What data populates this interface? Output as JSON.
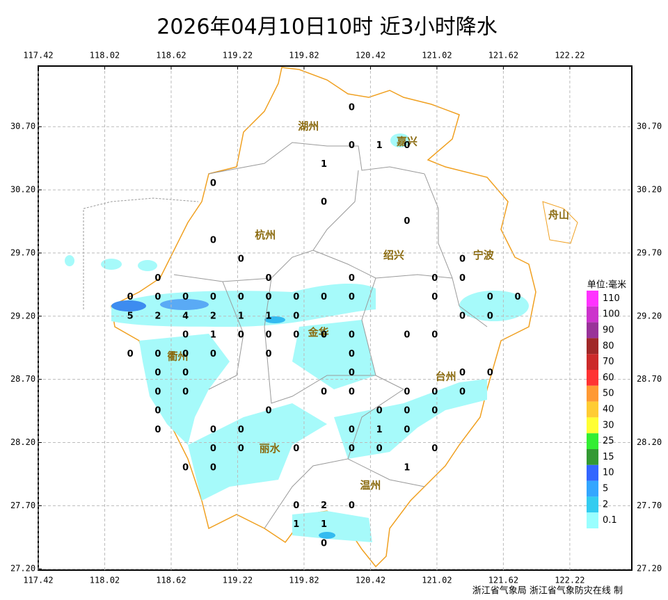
{
  "title": "2026年04月10日10时  近3小时降水",
  "map": {
    "xlim": [
      117.42,
      122.78
    ],
    "ylim": [
      27.19,
      31.18
    ],
    "xticks": [
      117.42,
      118.02,
      118.62,
      119.22,
      119.82,
      120.42,
      121.02,
      121.62,
      122.22
    ],
    "yticks": [
      {
        "value": 30.7,
        "label": "30.70"
      },
      {
        "value": 30.2,
        "label": "30.20"
      },
      {
        "value": 29.7,
        "label": "29.70"
      },
      {
        "value": 29.2,
        "label": "29.20"
      },
      {
        "value": 28.7,
        "label": "28.70"
      },
      {
        "value": 28.2,
        "label": "28.20"
      },
      {
        "value": 27.7,
        "label": "27.70"
      },
      {
        "value": 27.2,
        "label": "27.20"
      }
    ],
    "cities": [
      {
        "name": "湖州",
        "lon": 119.86,
        "lat": 30.7
      },
      {
        "name": "嘉兴",
        "lon": 120.75,
        "lat": 30.58
      },
      {
        "name": "杭州",
        "lon": 119.47,
        "lat": 29.84
      },
      {
        "name": "绍兴",
        "lon": 120.63,
        "lat": 29.68
      },
      {
        "name": "宁波",
        "lon": 121.44,
        "lat": 29.68
      },
      {
        "name": "舟山",
        "lon": 122.12,
        "lat": 30.0
      },
      {
        "name": "衢州",
        "lon": 118.68,
        "lat": 28.88
      },
      {
        "name": "金华",
        "lon": 119.95,
        "lat": 29.07
      },
      {
        "name": "台州",
        "lon": 121.1,
        "lat": 28.72
      },
      {
        "name": "丽水",
        "lon": 119.51,
        "lat": 28.15
      },
      {
        "name": "温州",
        "lon": 120.42,
        "lat": 27.86
      }
    ],
    "stations": [
      {
        "lon": 120.25,
        "lat": 30.85,
        "value": 0
      },
      {
        "lon": 120.25,
        "lat": 30.55,
        "value": 0
      },
      {
        "lon": 120.5,
        "lat": 30.55,
        "value": 1
      },
      {
        "lon": 120.75,
        "lat": 30.55,
        "value": 0
      },
      {
        "lon": 120.0,
        "lat": 30.4,
        "value": 1
      },
      {
        "lon": 119.0,
        "lat": 30.25,
        "value": 0
      },
      {
        "lon": 120.0,
        "lat": 30.1,
        "value": 0
      },
      {
        "lon": 120.75,
        "lat": 29.95,
        "value": 0
      },
      {
        "lon": 119.0,
        "lat": 29.8,
        "value": 0
      },
      {
        "lon": 119.25,
        "lat": 29.65,
        "value": 0
      },
      {
        "lon": 121.25,
        "lat": 29.65,
        "value": 0
      },
      {
        "lon": 118.5,
        "lat": 29.5,
        "value": 0
      },
      {
        "lon": 119.5,
        "lat": 29.5,
        "value": 0
      },
      {
        "lon": 120.25,
        "lat": 29.5,
        "value": 0
      },
      {
        "lon": 121.0,
        "lat": 29.5,
        "value": 0
      },
      {
        "lon": 121.25,
        "lat": 29.5,
        "value": 0
      },
      {
        "lon": 118.25,
        "lat": 29.35,
        "value": 0
      },
      {
        "lon": 118.5,
        "lat": 29.35,
        "value": 0
      },
      {
        "lon": 118.75,
        "lat": 29.35,
        "value": 0
      },
      {
        "lon": 119.0,
        "lat": 29.35,
        "value": 0
      },
      {
        "lon": 119.25,
        "lat": 29.35,
        "value": 0
      },
      {
        "lon": 119.5,
        "lat": 29.35,
        "value": 0
      },
      {
        "lon": 119.75,
        "lat": 29.35,
        "value": 0
      },
      {
        "lon": 120.0,
        "lat": 29.35,
        "value": 0
      },
      {
        "lon": 120.25,
        "lat": 29.35,
        "value": 0
      },
      {
        "lon": 121.0,
        "lat": 29.35,
        "value": 0
      },
      {
        "lon": 121.5,
        "lat": 29.35,
        "value": 0
      },
      {
        "lon": 121.75,
        "lat": 29.35,
        "value": 0
      },
      {
        "lon": 118.25,
        "lat": 29.2,
        "value": 5
      },
      {
        "lon": 118.5,
        "lat": 29.2,
        "value": 2
      },
      {
        "lon": 118.75,
        "lat": 29.2,
        "value": 4
      },
      {
        "lon": 119.0,
        "lat": 29.2,
        "value": 2
      },
      {
        "lon": 119.25,
        "lat": 29.2,
        "value": 1
      },
      {
        "lon": 119.5,
        "lat": 29.2,
        "value": 1
      },
      {
        "lon": 119.75,
        "lat": 29.2,
        "value": 0
      },
      {
        "lon": 121.25,
        "lat": 29.2,
        "value": 0
      },
      {
        "lon": 121.5,
        "lat": 29.2,
        "value": 0
      },
      {
        "lon": 118.75,
        "lat": 29.05,
        "value": 0
      },
      {
        "lon": 119.0,
        "lat": 29.05,
        "value": 1
      },
      {
        "lon": 119.25,
        "lat": 29.05,
        "value": 0
      },
      {
        "lon": 119.5,
        "lat": 29.05,
        "value": 0
      },
      {
        "lon": 119.75,
        "lat": 29.05,
        "value": 0
      },
      {
        "lon": 120.0,
        "lat": 29.05,
        "value": 0
      },
      {
        "lon": 120.25,
        "lat": 29.05,
        "value": 0
      },
      {
        "lon": 120.75,
        "lat": 29.05,
        "value": 0
      },
      {
        "lon": 121.0,
        "lat": 29.05,
        "value": 0
      },
      {
        "lon": 118.25,
        "lat": 28.9,
        "value": 0
      },
      {
        "lon": 118.5,
        "lat": 28.9,
        "value": 0
      },
      {
        "lon": 118.75,
        "lat": 28.9,
        "value": 0
      },
      {
        "lon": 119.0,
        "lat": 28.9,
        "value": 0
      },
      {
        "lon": 119.5,
        "lat": 28.9,
        "value": 0
      },
      {
        "lon": 120.25,
        "lat": 28.9,
        "value": 0
      },
      {
        "lon": 118.5,
        "lat": 28.75,
        "value": 0
      },
      {
        "lon": 118.75,
        "lat": 28.75,
        "value": 0
      },
      {
        "lon": 120.25,
        "lat": 28.75,
        "value": 0
      },
      {
        "lon": 121.25,
        "lat": 28.75,
        "value": 0
      },
      {
        "lon": 121.5,
        "lat": 28.75,
        "value": 0
      },
      {
        "lon": 118.5,
        "lat": 28.6,
        "value": 0
      },
      {
        "lon": 118.75,
        "lat": 28.6,
        "value": 0
      },
      {
        "lon": 120.0,
        "lat": 28.6,
        "value": 0
      },
      {
        "lon": 120.25,
        "lat": 28.6,
        "value": 0
      },
      {
        "lon": 120.75,
        "lat": 28.6,
        "value": 0
      },
      {
        "lon": 121.0,
        "lat": 28.6,
        "value": 0
      },
      {
        "lon": 121.25,
        "lat": 28.6,
        "value": 0
      },
      {
        "lon": 118.5,
        "lat": 28.45,
        "value": 0
      },
      {
        "lon": 119.5,
        "lat": 28.45,
        "value": 0
      },
      {
        "lon": 120.5,
        "lat": 28.45,
        "value": 0
      },
      {
        "lon": 120.75,
        "lat": 28.45,
        "value": 0
      },
      {
        "lon": 121.0,
        "lat": 28.45,
        "value": 0
      },
      {
        "lon": 118.5,
        "lat": 28.3,
        "value": 0
      },
      {
        "lon": 119.0,
        "lat": 28.3,
        "value": 0
      },
      {
        "lon": 119.25,
        "lat": 28.3,
        "value": 0
      },
      {
        "lon": 120.25,
        "lat": 28.3,
        "value": 0
      },
      {
        "lon": 120.5,
        "lat": 28.3,
        "value": 1
      },
      {
        "lon": 120.75,
        "lat": 28.3,
        "value": 0
      },
      {
        "lon": 119.0,
        "lat": 28.15,
        "value": 0
      },
      {
        "lon": 119.25,
        "lat": 28.15,
        "value": 0
      },
      {
        "lon": 119.75,
        "lat": 28.15,
        "value": 0
      },
      {
        "lon": 120.25,
        "lat": 28.15,
        "value": 0
      },
      {
        "lon": 120.5,
        "lat": 28.15,
        "value": 0
      },
      {
        "lon": 121.0,
        "lat": 28.15,
        "value": 0
      },
      {
        "lon": 118.75,
        "lat": 28.0,
        "value": 0
      },
      {
        "lon": 119.0,
        "lat": 28.0,
        "value": 0
      },
      {
        "lon": 120.75,
        "lat": 28.0,
        "value": 1
      },
      {
        "lon": 119.75,
        "lat": 27.7,
        "value": 0
      },
      {
        "lon": 120.0,
        "lat": 27.7,
        "value": 2
      },
      {
        "lon": 120.25,
        "lat": 27.7,
        "value": 0
      },
      {
        "lon": 119.75,
        "lat": 27.55,
        "value": 1
      },
      {
        "lon": 120.0,
        "lat": 27.55,
        "value": 1
      },
      {
        "lon": 120.0,
        "lat": 27.4,
        "value": 0
      }
    ]
  },
  "legend": {
    "title": "单位:毫米",
    "levels": [
      {
        "value": 110,
        "color": "#ff33ff"
      },
      {
        "value": 100,
        "color": "#cc33cc"
      },
      {
        "value": 90,
        "color": "#993399"
      },
      {
        "value": 80,
        "color": "#a02828"
      },
      {
        "value": 70,
        "color": "#cc2a2a"
      },
      {
        "value": 60,
        "color": "#ff3333"
      },
      {
        "value": 50,
        "color": "#ff9933"
      },
      {
        "value": 40,
        "color": "#ffcc33"
      },
      {
        "value": 30,
        "color": "#ffff33"
      },
      {
        "value": 25,
        "color": "#33ee33"
      },
      {
        "value": 15,
        "color": "#339933"
      },
      {
        "value": 10,
        "color": "#3366ff"
      },
      {
        "value": 5,
        "color": "#33a6ff"
      },
      {
        "value": 2,
        "color": "#33ccf0"
      },
      {
        "value": 0.1,
        "color": "#99ffff"
      }
    ]
  },
  "credit": "浙江省气象局 浙江省气象防灾在线 制"
}
